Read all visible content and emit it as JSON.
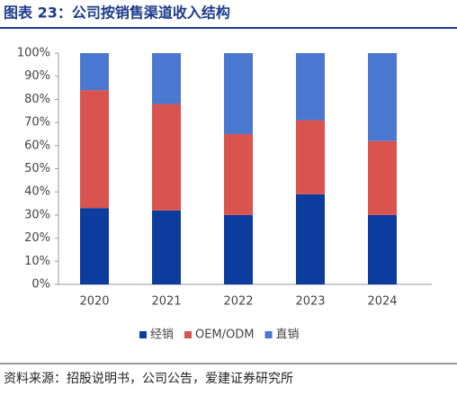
{
  "chart_data": {
    "type": "stacked-bar",
    "title": "图表 23：公司按销售渠道收入结构",
    "source": "资料来源：招股说明书，公司公告，爱建证券研究所",
    "categories": [
      "2020",
      "2021",
      "2022",
      "2023",
      "2024"
    ],
    "series": [
      {
        "name": "经销",
        "color": "#0b3c9e",
        "values": [
          33,
          32,
          30,
          39,
          30
        ]
      },
      {
        "name": "OEM/ODM",
        "color": "#d9534f",
        "values": [
          51,
          46,
          35,
          32,
          32
        ]
      },
      {
        "name": "直销",
        "color": "#4a78d0",
        "values": [
          16,
          22,
          35,
          29,
          38
        ]
      }
    ],
    "ylim": [
      0,
      100
    ],
    "yticks": [
      {
        "value": 0,
        "label": "0%"
      },
      {
        "value": 10,
        "label": "10%"
      },
      {
        "value": 20,
        "label": "20%"
      },
      {
        "value": 30,
        "label": "30%"
      },
      {
        "value": 40,
        "label": "40%"
      },
      {
        "value": 50,
        "label": "50%"
      },
      {
        "value": 60,
        "label": "60%"
      },
      {
        "value": 70,
        "label": "70%"
      },
      {
        "value": 80,
        "label": "80%"
      },
      {
        "value": 90,
        "label": "90%"
      },
      {
        "value": 100,
        "label": "100%"
      }
    ],
    "legend": "bottom"
  }
}
